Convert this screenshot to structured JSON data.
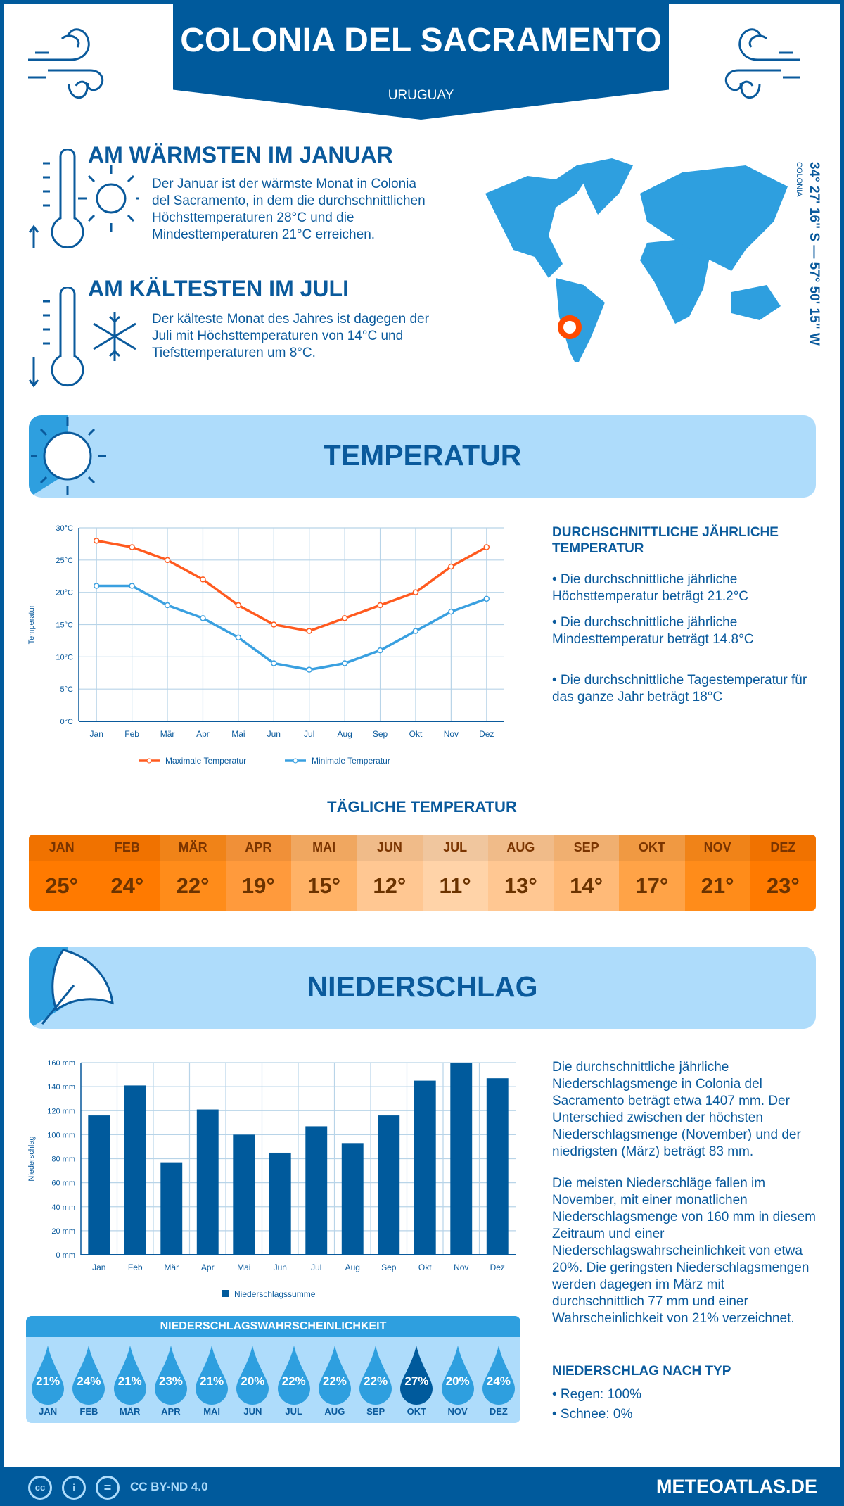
{
  "header": {
    "city": "COLONIA DEL SACRAMENTO",
    "country": "URUGUAY"
  },
  "warmest": {
    "title": "AM WÄRMSTEN IM JANUAR",
    "text": "Der Januar ist der wärmste Monat in Colonia del Sacramento, in dem die durchschnittlichen Höchsttemperaturen 28°C und die Mindesttemperaturen 21°C erreichen."
  },
  "coldest": {
    "title": "AM KÄLTESTEN IM JULI",
    "text": "Der kälteste Monat des Jahres ist dagegen der Juli mit Höchsttemperaturen von 14°C und Tiefsttemperaturen um 8°C."
  },
  "map": {
    "place_label": "COLONIA",
    "coords": "34° 27' 16\" S — 57° 50' 15\" W",
    "marker_color": "#ff4a00"
  },
  "temperature_section": {
    "title": "TEMPERATUR",
    "side_title": "DURCHSCHNITTLICHE JÄHRLICHE TEMPERATUR",
    "bullets": [
      "• Die durchschnittliche jährliche Höchsttemperatur beträgt 21.2°C",
      "• Die durchschnittliche jährliche Mindesttemperatur beträgt 14.8°C",
      "• Die durchschnittliche Tagestemperatur für das ganze Jahr beträgt 18°C"
    ]
  },
  "daily": {
    "title": "TÄGLICHE TEMPERATUR",
    "months": [
      "JAN",
      "FEB",
      "MÄR",
      "APR",
      "MAI",
      "JUN",
      "JUL",
      "AUG",
      "SEP",
      "OKT",
      "NOV",
      "DEZ"
    ],
    "values": [
      "25°",
      "24°",
      "22°",
      "19°",
      "15°",
      "12°",
      "11°",
      "13°",
      "14°",
      "17°",
      "21°",
      "23°"
    ],
    "colors": [
      "#ff7a00",
      "#ff7a00",
      "#ff8c1a",
      "#ff9a3c",
      "#ffb266",
      "#ffc792",
      "#ffd3a8",
      "#ffc792",
      "#ffba78",
      "#ffa347",
      "#ff8c1a",
      "#ff7a00"
    ]
  },
  "precip_section": {
    "title": "NIEDERSCHLAG",
    "text1": "Die durchschnittliche jährliche Niederschlagsmenge in Colonia del Sacramento beträgt etwa 1407 mm. Der Unterschied zwischen der höchsten Niederschlagsmenge (November) und der niedrigsten (März) beträgt 83 mm.",
    "text2": "Die meisten Niederschläge fallen im November, mit einer monatlichen Niederschlagsmenge von 160 mm in diesem Zeitraum und einer Niederschlagswahrscheinlichkeit von etwa 20%. Die geringsten Niederschlagsmengen werden dagegen im März mit durchschnittlich 77 mm und einer Wahrscheinlichkeit von 21% verzeichnet.",
    "type_title": "NIEDERSCHLAG NACH TYP",
    "rain": "• Regen: 100%",
    "snow": "• Schnee: 0%"
  },
  "probability": {
    "title": "NIEDERSCHLAGSWAHRSCHEINLICHKEIT",
    "months": [
      "JAN",
      "FEB",
      "MÄR",
      "APR",
      "MAI",
      "JUN",
      "JUL",
      "AUG",
      "SEP",
      "OKT",
      "NOV",
      "DEZ"
    ],
    "values": [
      "21%",
      "24%",
      "21%",
      "23%",
      "21%",
      "20%",
      "22%",
      "22%",
      "22%",
      "27%",
      "20%",
      "24%"
    ],
    "highlight_index": 9
  },
  "footer": {
    "license": "CC BY-ND 4.0",
    "brand": "METEOATLAS.DE",
    "cc": "cc",
    "eq": "="
  },
  "chart_data": [
    {
      "type": "line",
      "categories": [
        "Jan",
        "Feb",
        "Mär",
        "Apr",
        "Mai",
        "Jun",
        "Jul",
        "Aug",
        "Sep",
        "Okt",
        "Nov",
        "Dez"
      ],
      "ylabel": "Temperatur",
      "ylim": [
        0,
        30
      ],
      "yticks": [
        "0°C",
        "5°C",
        "10°C",
        "15°C",
        "20°C",
        "25°C",
        "30°C"
      ],
      "grid": true,
      "legend": "bottom",
      "series": [
        {
          "name": "Maximale Temperatur",
          "color": "#ff5a1f",
          "values": [
            28,
            27,
            25,
            22,
            18,
            15,
            14,
            16,
            18,
            20,
            24,
            27
          ]
        },
        {
          "name": "Minimale Temperatur",
          "color": "#3aa0e0",
          "values": [
            21,
            21,
            18,
            16,
            13,
            9,
            8,
            9,
            11,
            14,
            17,
            19
          ]
        }
      ]
    },
    {
      "type": "bar",
      "categories": [
        "Jan",
        "Feb",
        "Mär",
        "Apr",
        "Mai",
        "Jun",
        "Jul",
        "Aug",
        "Sep",
        "Okt",
        "Nov",
        "Dez"
      ],
      "ylabel": "Niederschlag",
      "ylim": [
        0,
        160
      ],
      "yticks": [
        "0 mm",
        "20 mm",
        "40 mm",
        "60 mm",
        "80 mm",
        "100 mm",
        "120 mm",
        "140 mm",
        "160 mm"
      ],
      "grid": true,
      "legend": "bottom",
      "series": [
        {
          "name": "Niederschlagssumme",
          "color": "#005a9c",
          "values": [
            116,
            141,
            77,
            121,
            100,
            85,
            107,
            93,
            116,
            145,
            160,
            147
          ]
        }
      ]
    }
  ]
}
